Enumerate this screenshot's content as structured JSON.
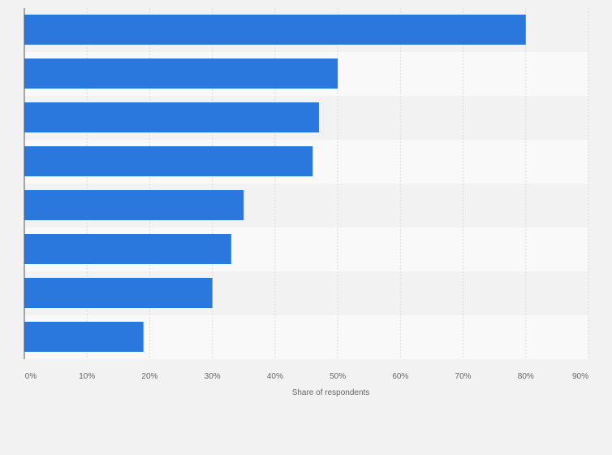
{
  "chart_data": {
    "type": "bar",
    "orientation": "horizontal",
    "categories": [
      "",
      "",
      "",
      "",
      "",
      "",
      "",
      ""
    ],
    "values": [
      80,
      50,
      47,
      46,
      35,
      33,
      30,
      19
    ],
    "value_unit": "%",
    "xlabel": "Share of respondents",
    "ylabel": "",
    "xlim": [
      0,
      90
    ],
    "x_ticks": [
      "0%",
      "10%",
      "20%",
      "30%",
      "40%",
      "50%",
      "60%",
      "70%",
      "80%",
      "90%"
    ],
    "grid": true,
    "legend": "none"
  },
  "colors": {
    "bar": "#2a77de",
    "band_light": "#f9f9f9",
    "band_dark": "#f2f2f2",
    "grid": "#dcdcdc",
    "axis": "#555555"
  }
}
